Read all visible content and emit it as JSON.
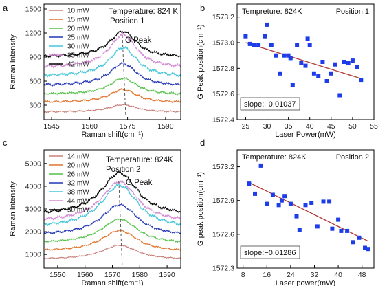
{
  "colors": {
    "spectra": [
      "#c9807a",
      "#e1752e",
      "#55c24a",
      "#2436b5",
      "#45c6d8",
      "#d48ad4",
      "#000000"
    ],
    "scatter": "#1d3de8",
    "fit": "#b0362f"
  },
  "chart_data": [
    {
      "panel": "a",
      "type": "line",
      "xlabel": "Raman shift(cm⁻¹)",
      "ylabel": "Raman Intensity",
      "xlim": [
        1542,
        1596
      ],
      "ylim": [
        120,
        1560
      ],
      "x_ticks": [
        1545,
        1560,
        1575,
        1590
      ],
      "y_ticks": [
        300,
        600,
        900,
        1200,
        1500
      ],
      "annotations": [
        "Temperature: 824 K",
        "Position 1",
        "G Peak"
      ],
      "legend_position": "top-left",
      "peak_center": 1573.2,
      "series": [
        {
          "name": "10 mW",
          "baseline": 215,
          "amplitude": 90
        },
        {
          "name": "15 mW",
          "baseline": 335,
          "amplitude": 160
        },
        {
          "name": "20 mW",
          "baseline": 435,
          "amplitude": 200
        },
        {
          "name": "25 mW",
          "baseline": 545,
          "amplitude": 275
        },
        {
          "name": "30 mW",
          "baseline": 660,
          "amplitude": 360
        },
        {
          "name": "35 mW",
          "baseline": 770,
          "amplitude": 410
        },
        {
          "name": "42 mW",
          "baseline": 900,
          "amplitude": 320
        }
      ]
    },
    {
      "panel": "b",
      "type": "scatter",
      "xlabel": "Laser Power(mW)",
      "ylabel": "G Peak position(cm⁻¹)",
      "xlim": [
        23,
        55
      ],
      "ylim": [
        1572.4,
        1573.3
      ],
      "x_ticks": [
        25,
        30,
        35,
        40,
        45,
        50,
        55
      ],
      "y_ticks": [
        1572.4,
        1572.6,
        1572.8,
        1573.0,
        1573.2
      ],
      "annotations": [
        "Tempreture: 824K",
        "Position 1"
      ],
      "slope_label": "slope:−0.01037",
      "fit": {
        "x": [
          25,
          52
        ],
        "y": [
          1573.0,
          1572.72
        ]
      },
      "x": [
        25,
        26,
        27,
        28,
        29.5,
        30,
        31,
        32,
        33,
        34,
        35,
        35.5,
        36,
        37,
        38,
        39,
        39.5,
        40,
        41,
        42,
        43,
        44,
        45,
        46,
        47,
        48,
        49,
        50,
        51,
        52
      ],
      "y": [
        1573.05,
        1572.99,
        1572.98,
        1572.98,
        1573.05,
        1573.14,
        1572.98,
        1572.9,
        1572.76,
        1572.9,
        1572.9,
        1572.88,
        1572.67,
        1572.98,
        1572.84,
        1572.82,
        1573.03,
        1572.98,
        1572.76,
        1572.74,
        1572.85,
        1572.7,
        1572.76,
        1572.83,
        1572.59,
        1572.85,
        1572.84,
        1572.86,
        1572.81,
        1572.71
      ]
    },
    {
      "panel": "c",
      "type": "line",
      "xlabel": "Raman shift(cm⁻¹)",
      "ylabel": "Raman Intensity",
      "xlim": [
        1545,
        1595
      ],
      "ylim": [
        400,
        5600
      ],
      "x_ticks": [
        1550,
        1560,
        1570,
        1580,
        1590
      ],
      "y_ticks": [
        1000,
        2000,
        3000,
        4000,
        5000
      ],
      "annotations": [
        "Temperature: 824K",
        "Position 2",
        "G Peak"
      ],
      "legend_position": "top-left",
      "peak_center": 1572.6,
      "series": [
        {
          "name": "14 mW",
          "baseline": 780,
          "amplitude": 620
        },
        {
          "name": "20 mW",
          "baseline": 1130,
          "amplitude": 920
        },
        {
          "name": "26 mW",
          "baseline": 1480,
          "amplitude": 1070
        },
        {
          "name": "32 mW",
          "baseline": 1830,
          "amplitude": 1360
        },
        {
          "name": "38 mW",
          "baseline": 2180,
          "amplitude": 1870
        },
        {
          "name": "44 mW",
          "baseline": 2430,
          "amplitude": 1770
        },
        {
          "name": "50 mW",
          "baseline": 2730,
          "amplitude": 1860
        }
      ]
    },
    {
      "panel": "d",
      "type": "scatter",
      "xlabel": "Laser power(mW)",
      "ylabel": "G peak position(cm⁻¹)",
      "xlim": [
        6,
        52
      ],
      "ylim": [
        1572.3,
        1573.35
      ],
      "x_ticks": [
        8,
        16,
        24,
        32,
        40,
        48
      ],
      "y_ticks": [
        1572.3,
        1572.6,
        1572.9,
        1573.2
      ],
      "annotations": [
        "Temperature: 824K",
        "Position 2"
      ],
      "slope_label": "slope:−0.01286",
      "fit": {
        "x": [
          10,
          50
        ],
        "y": [
          1573.06,
          1572.54
        ]
      },
      "x": [
        10,
        12,
        14,
        16,
        18,
        20,
        21,
        22,
        24,
        26,
        27,
        29,
        31,
        33,
        35,
        37,
        38,
        40,
        41,
        43,
        45,
        47,
        49,
        50
      ],
      "y": [
        1573.05,
        1572.96,
        1573.21,
        1572.87,
        1572.95,
        1572.86,
        1572.9,
        1572.94,
        1572.87,
        1572.76,
        1572.64,
        1572.86,
        1572.88,
        1572.67,
        1572.89,
        1572.89,
        1572.65,
        1572.73,
        1572.63,
        1572.63,
        1572.53,
        1572.57,
        1572.48,
        1572.47
      ]
    }
  ]
}
